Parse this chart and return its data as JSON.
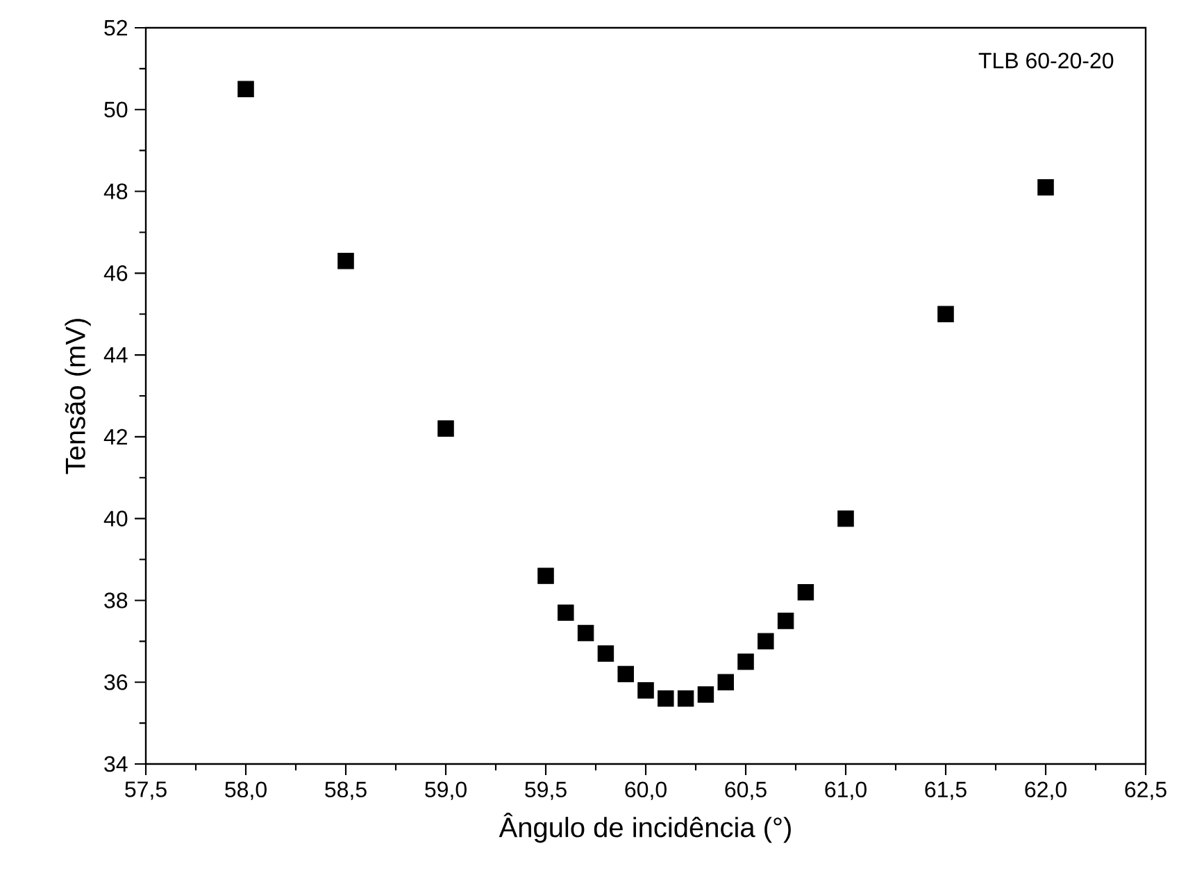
{
  "chart_data": {
    "type": "scatter",
    "xlabel": "Ângulo de incidência (°)",
    "ylabel": "Tensão (mV)",
    "annotations": [
      "TLB 60-20-20"
    ],
    "x": [
      58.0,
      58.5,
      59.0,
      59.5,
      59.6,
      59.7,
      59.8,
      59.9,
      60.0,
      60.1,
      60.2,
      60.3,
      60.4,
      60.5,
      60.6,
      60.7,
      60.8,
      61.0,
      61.5,
      62.0
    ],
    "values": [
      50.5,
      46.3,
      42.2,
      38.6,
      37.7,
      37.2,
      36.7,
      36.2,
      35.8,
      35.6,
      35.6,
      35.7,
      36.0,
      36.5,
      37.0,
      37.5,
      38.2,
      40.0,
      45.0,
      48.1
    ],
    "color": "#000000",
    "marker": "square",
    "grid": false,
    "xlim": [
      57.5,
      62.5
    ],
    "ylim": [
      34,
      52
    ],
    "xticks": [
      {
        "value": 57.5,
        "label": "57,5"
      },
      {
        "value": 58.0,
        "label": "58,0"
      },
      {
        "value": 58.5,
        "label": "58,5"
      },
      {
        "value": 59.0,
        "label": "59,0"
      },
      {
        "value": 59.5,
        "label": "59,5"
      },
      {
        "value": 60.0,
        "label": "60,0"
      },
      {
        "value": 60.5,
        "label": "60,5"
      },
      {
        "value": 61.0,
        "label": "61,0"
      },
      {
        "value": 61.5,
        "label": "61,5"
      },
      {
        "value": 62.0,
        "label": "62,0"
      },
      {
        "value": 62.5,
        "label": "62,5"
      }
    ],
    "yticks": [
      34,
      36,
      38,
      40,
      42,
      44,
      46,
      48,
      50,
      52
    ]
  }
}
